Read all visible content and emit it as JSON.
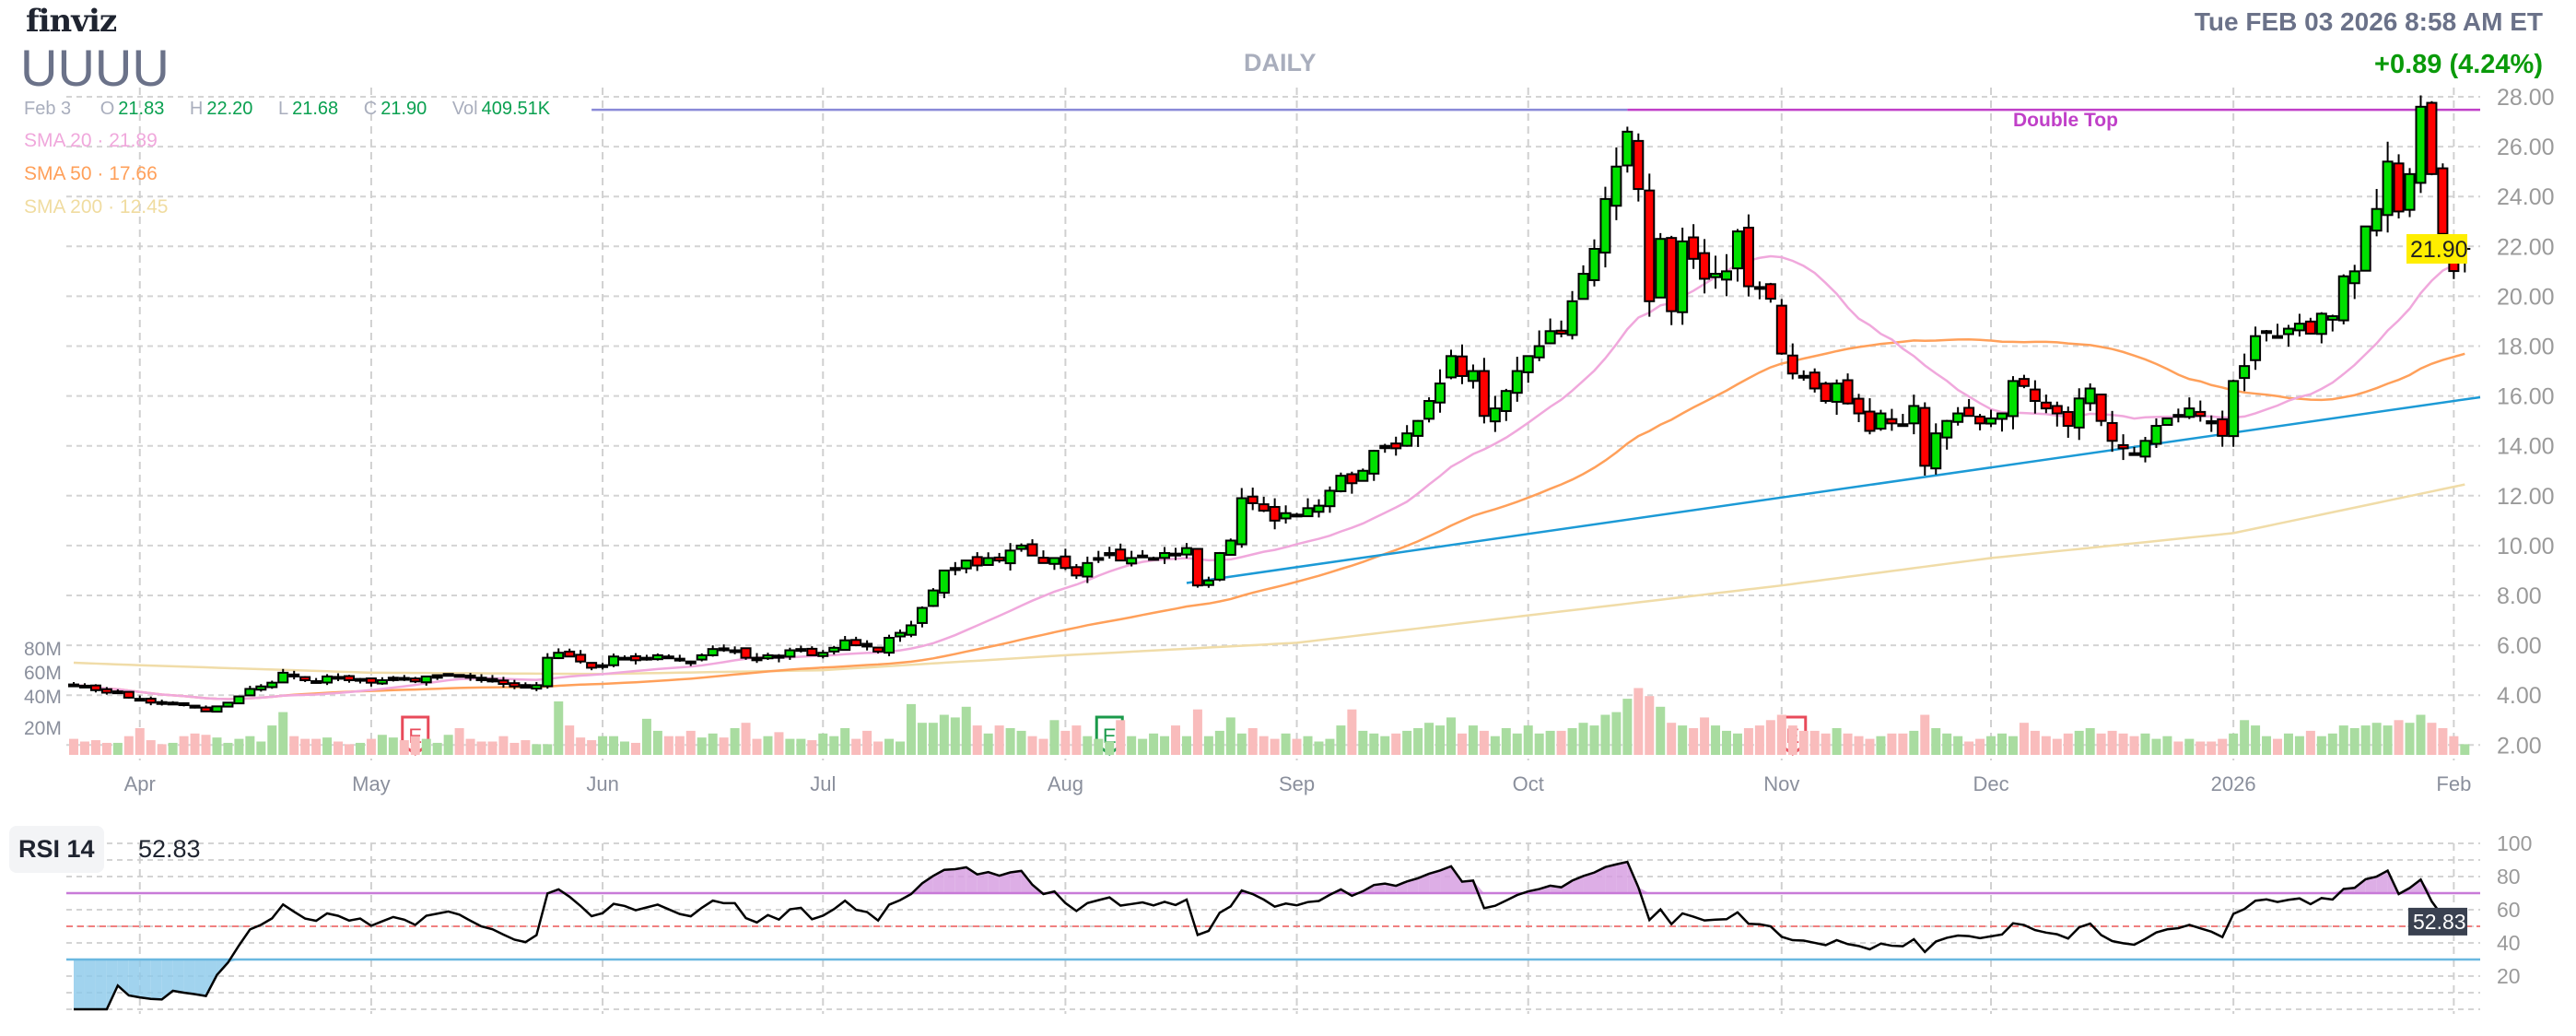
{
  "header": {
    "logo": "finviz",
    "ticker": "UUUU",
    "datetime": "Tue FEB 03 2026 8:58 AM ET",
    "change": "+0.89 (4.24%)",
    "period": "DAILY",
    "ohlc": {
      "date": "Feb 3",
      "open_label": "O",
      "open": "21.83",
      "high_label": "H",
      "high": "22.20",
      "low_label": "L",
      "low": "21.68",
      "close_label": "C",
      "close": "21.90",
      "vol_label": "Vol",
      "vol": "409.51K"
    },
    "sma": [
      {
        "label": "SMA 20",
        "value": "21.89"
      },
      {
        "label": "SMA 50",
        "value": "17.66"
      },
      {
        "label": "SMA 200",
        "value": "12.45"
      }
    ]
  },
  "colors": {
    "up": "#00e000",
    "down": "#ff0000",
    "vol_up": "#a9dca0",
    "vol_down": "#f9bcbc",
    "sma20": "#f0a8dc",
    "sma50": "#ffa05a",
    "sma200": "#f0dca8",
    "trendline": "#1c9ad6",
    "double_top": "#c040c8",
    "rsi_high": "#c87ad8",
    "rsi_low": "#6ab8e0",
    "price_badge": "#ffee00"
  },
  "chart_data": {
    "type": "candlestick",
    "title": "UUUU DAILY",
    "ylim": [
      2,
      28
    ],
    "price_ticks": [
      "28.00",
      "26.00",
      "24.00",
      "22.00",
      "20.00",
      "18.00",
      "16.00",
      "14.00",
      "12.00",
      "10.00",
      "8.00",
      "6.00",
      "4.00",
      "2.00"
    ],
    "last_price_label": "21.90",
    "x_labels": [
      {
        "label": "Apr",
        "index": 6
      },
      {
        "label": "May",
        "index": 27
      },
      {
        "label": "Jun",
        "index": 48
      },
      {
        "label": "Jul",
        "index": 68
      },
      {
        "label": "Aug",
        "index": 90
      },
      {
        "label": "Sep",
        "index": 111
      },
      {
        "label": "Oct",
        "index": 132
      },
      {
        "label": "Nov",
        "index": 155
      },
      {
        "label": "Dec",
        "index": 174
      },
      {
        "label": "2026",
        "index": 196
      },
      {
        "label": "Feb",
        "index": 216
      }
    ],
    "closes": [
      4.4,
      4.35,
      4.2,
      4.1,
      4.15,
      3.9,
      3.8,
      3.7,
      3.65,
      3.7,
      3.6,
      3.5,
      3.35,
      3.55,
      3.7,
      3.95,
      4.25,
      4.35,
      4.5,
      4.9,
      4.75,
      4.6,
      4.55,
      4.75,
      4.7,
      4.6,
      4.65,
      4.5,
      4.6,
      4.7,
      4.65,
      4.55,
      4.75,
      4.8,
      4.85,
      4.8,
      4.7,
      4.6,
      4.55,
      4.45,
      4.35,
      4.3,
      4.4,
      5.5,
      5.7,
      5.55,
      5.35,
      5.1,
      5.2,
      5.55,
      5.5,
      5.4,
      5.5,
      5.6,
      5.5,
      5.4,
      5.35,
      5.6,
      5.85,
      5.8,
      5.8,
      5.5,
      5.4,
      5.6,
      5.5,
      5.8,
      5.85,
      5.6,
      5.7,
      5.9,
      6.2,
      6.0,
      5.95,
      5.75,
      6.3,
      6.5,
      6.8,
      7.5,
      8.2,
      9.0,
      9.1,
      9.4,
      9.2,
      9.5,
      9.4,
      9.8,
      10.0,
      9.6,
      9.3,
      9.5,
      9.1,
      8.8,
      9.3,
      9.5,
      9.7,
      9.4,
      9.5,
      9.6,
      9.5,
      9.7,
      9.6,
      9.9,
      8.4,
      8.6,
      9.7,
      10.2,
      11.9,
      11.7,
      11.4,
      11.0,
      11.3,
      11.2,
      11.5,
      11.6,
      12.2,
      12.8,
      12.5,
      13.0,
      13.8,
      14.0,
      13.9,
      14.5,
      15.0,
      15.8,
      16.5,
      17.6,
      16.8,
      17.0,
      15.2,
      15.5,
      16.2,
      17.0,
      17.6,
      18.0,
      18.6,
      18.5,
      19.8,
      20.9,
      21.9,
      23.9,
      25.2,
      26.6,
      24.3,
      19.8,
      22.3,
      19.4,
      22.2,
      21.5,
      20.7,
      20.9,
      21.0,
      22.6,
      20.4,
      20.3,
      19.9,
      17.7,
      16.9,
      16.8,
      16.3,
      15.8,
      16.5,
      15.7,
      15.3,
      14.6,
      15.3,
      14.9,
      14.8,
      15.6,
      13.2,
      14.5,
      15.0,
      15.3,
      15.2,
      14.9,
      15.1,
      15.3,
      16.6,
      16.4,
      15.8,
      15.5,
      15.3,
      14.8,
      15.9,
      16.3,
      15.0,
      14.2,
      13.9,
      13.7,
      14.2,
      14.8,
      15.1,
      15.2,
      15.5,
      15.2,
      14.9,
      14.4,
      16.6,
      17.2,
      18.4,
      18.6,
      18.4,
      18.7,
      18.9,
      18.5,
      19.3,
      19.2,
      20.8,
      21.0,
      22.8,
      23.5,
      25.4,
      23.4,
      24.9,
      27.6,
      24.9,
      22.5,
      21.01,
      21.9
    ],
    "volume_m": [
      12,
      10,
      11,
      9,
      9,
      14,
      20,
      11,
      8,
      9,
      14,
      16,
      15,
      13,
      9,
      12,
      14,
      10,
      22,
      32,
      14,
      12,
      12,
      13,
      10,
      8,
      9,
      12,
      15,
      13,
      11,
      14,
      12,
      9,
      15,
      20,
      12,
      10,
      10,
      14,
      9,
      11,
      8,
      8,
      40,
      22,
      13,
      11,
      14,
      14,
      10,
      9,
      27,
      18,
      14,
      14,
      18,
      13,
      16,
      13,
      20,
      24,
      12,
      14,
      17,
      12,
      12,
      11,
      16,
      14,
      20,
      12,
      18,
      10,
      12,
      10,
      38,
      24,
      24,
      30,
      28,
      36,
      22,
      16,
      22,
      20,
      18,
      14,
      12,
      26,
      18,
      22,
      14,
      12,
      10,
      26,
      14,
      12,
      16,
      14,
      22,
      14,
      34,
      14,
      18,
      28,
      16,
      20,
      14,
      12,
      16,
      12,
      14,
      10,
      12,
      22,
      34,
      18,
      16,
      14,
      16,
      18,
      20,
      24,
      22,
      28,
      16,
      22,
      18,
      14,
      20,
      16,
      22,
      16,
      18,
      18,
      20,
      24,
      22,
      30,
      32,
      42,
      50,
      44,
      36,
      24,
      22,
      20,
      28,
      22,
      18,
      16,
      20,
      22,
      26,
      30,
      22,
      18,
      18,
      16,
      20,
      16,
      14,
      12,
      14,
      16,
      16,
      18,
      30,
      20,
      16,
      14,
      10,
      12,
      14,
      16,
      14,
      24,
      18,
      14,
      12,
      16,
      18,
      20,
      16,
      18,
      16,
      14,
      16,
      12,
      14,
      10,
      12,
      10,
      10,
      12,
      16,
      26,
      22,
      14,
      12,
      16,
      14,
      18,
      14,
      16,
      22,
      20,
      22,
      24,
      22,
      26,
      24,
      30,
      24,
      20,
      14,
      8
    ],
    "volume_ticks": [
      "80M",
      "60M",
      "40M",
      "20M"
    ],
    "sma200_points": [
      [
        0,
        5.3
      ],
      [
        6,
        5.2
      ],
      [
        27,
        4.9
      ],
      [
        48,
        4.85
      ],
      [
        68,
        5.0
      ],
      [
        90,
        5.6
      ],
      [
        111,
        6.1
      ],
      [
        132,
        7.2
      ],
      [
        155,
        8.4
      ],
      [
        174,
        9.5
      ],
      [
        196,
        10.5
      ],
      [
        217,
        12.45
      ]
    ],
    "trendline": {
      "from": [
        101,
        8.5
      ],
      "to": [
        219,
        15.95
      ]
    },
    "double_top": {
      "label": "Double Top",
      "price": 27.48,
      "from_index": 47,
      "peak_index": 141
    },
    "earnings": [
      {
        "label": "E",
        "index": 31,
        "type": "down"
      },
      {
        "label": "E",
        "index": 94,
        "type": "up"
      },
      {
        "label": "E",
        "index": 156,
        "type": "down"
      }
    ],
    "rsi": {
      "label": "RSI 14",
      "value": "52.83",
      "period": 14,
      "levels": [
        70,
        50,
        30
      ],
      "ticks": [
        "100",
        "80",
        "60",
        "40",
        "20"
      ]
    }
  }
}
